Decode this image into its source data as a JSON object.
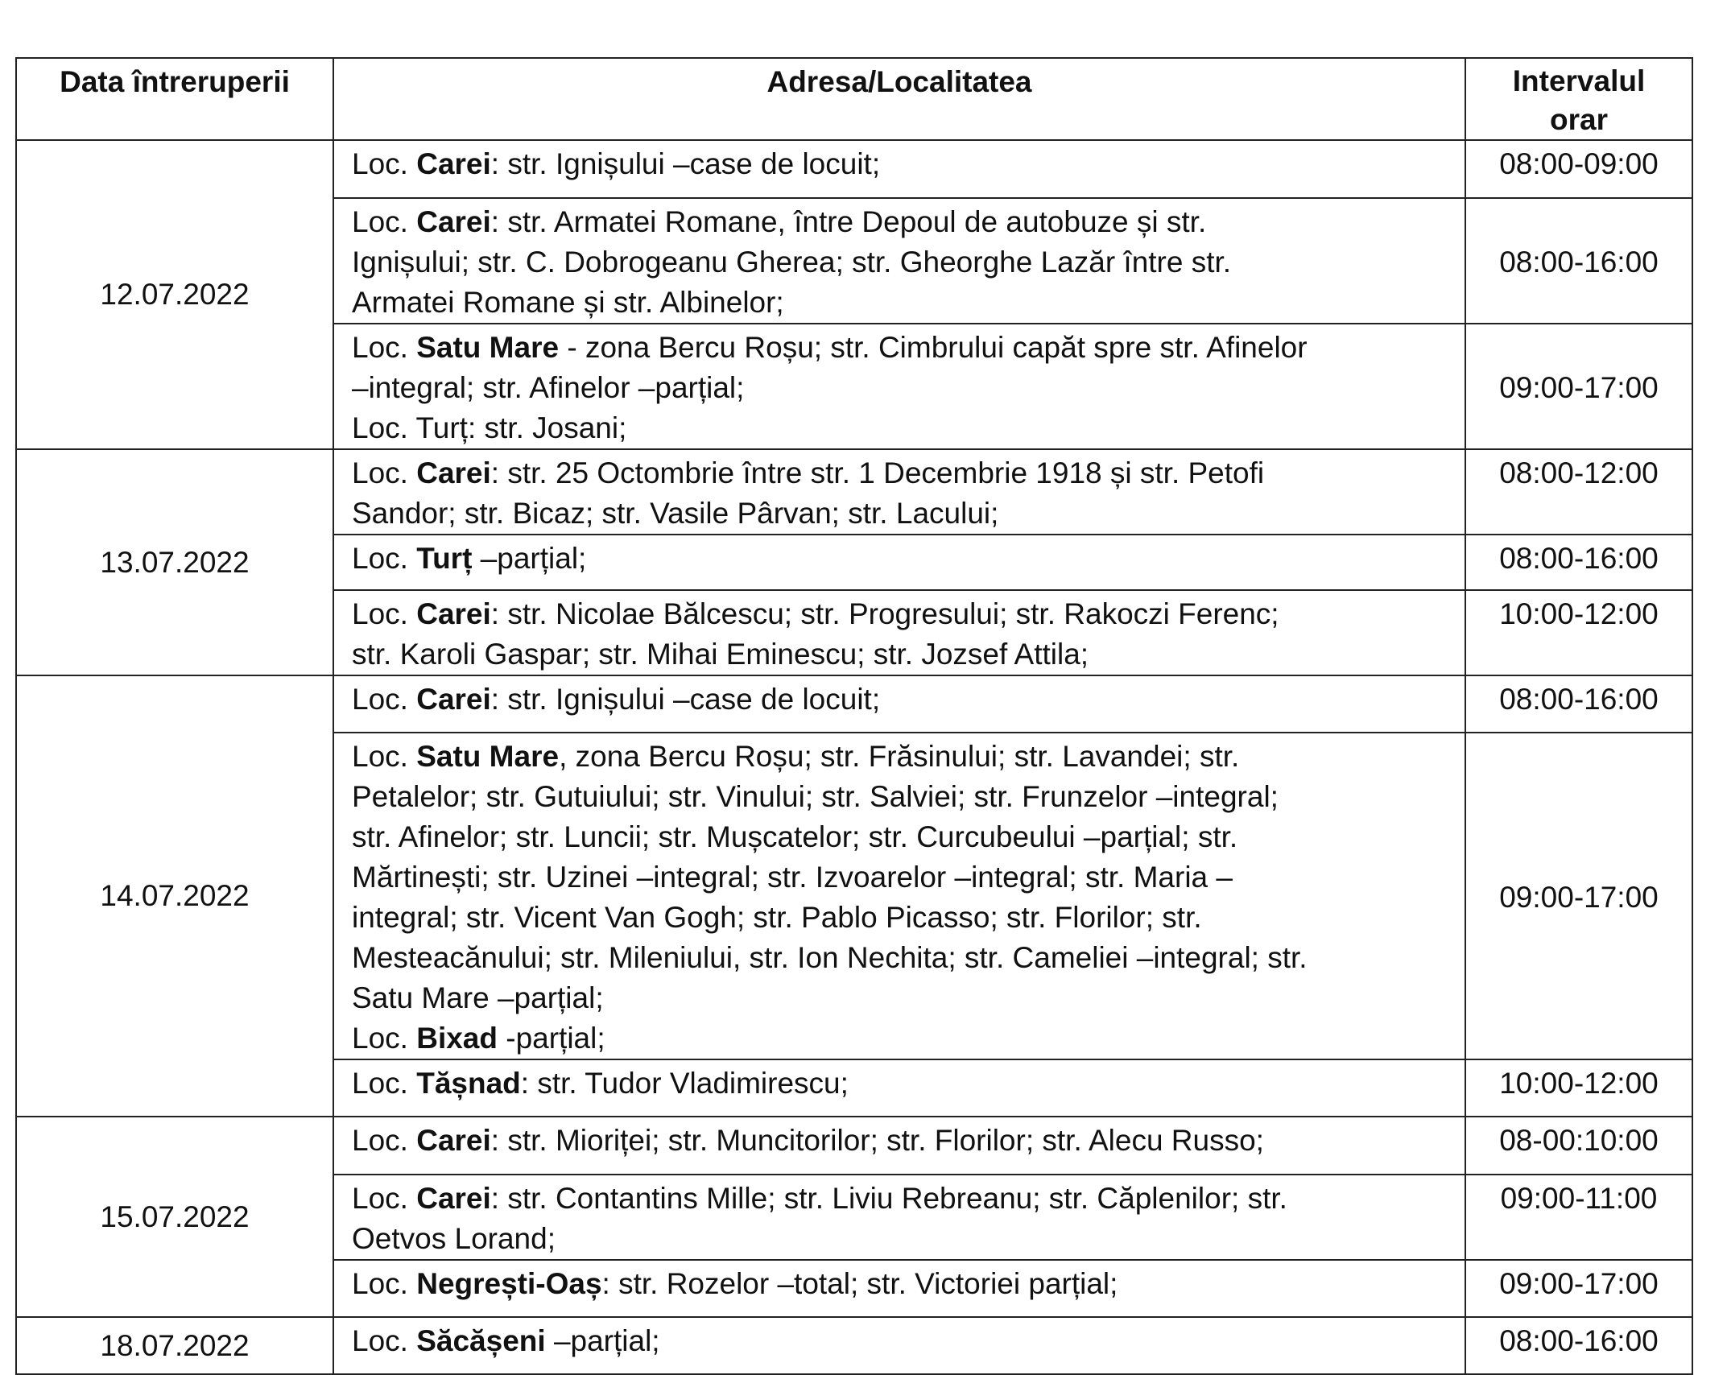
{
  "headers": [
    "Data întreruperii",
    "Adresa/Localitatea",
    "Intervalul orar"
  ],
  "groups": [
    {
      "date": "12.07.2022",
      "rows": [
        {
          "time": "08:00-09:00",
          "lines": [
            [
              {
                "t": "Loc. "
              },
              {
                "t": "Carei",
                "b": true
              },
              {
                "t": ": str. Ignișului –case de locuit;"
              }
            ]
          ]
        },
        {
          "time": "08:00-16:00",
          "lines": [
            [
              {
                "t": "Loc. "
              },
              {
                "t": "Carei",
                "b": true
              },
              {
                "t": ": str. Armatei Romane, între Depoul de autobuze și str."
              }
            ],
            [
              {
                "t": "Ignișului; str. C. Dobrogeanu Gherea; str. Gheorghe Lazăr între str."
              }
            ],
            [
              {
                "t": "Armatei Romane și str. Albinelor;"
              }
            ]
          ]
        },
        {
          "time": "09:00-17:00",
          "lines": [
            [
              {
                "t": "Loc. "
              },
              {
                "t": "Satu Mare",
                "b": true
              },
              {
                "t": " - zona Bercu Roșu; str. Cimbrului capăt spre str. Afinelor"
              }
            ],
            [
              {
                "t": "–integral; str. Afinelor –parțial;"
              }
            ],
            [
              {
                "t": "Loc. Turț: str. Josani;"
              }
            ]
          ]
        }
      ]
    },
    {
      "date": "13.07.2022",
      "rows": [
        {
          "time": "08:00-12:00",
          "lines": [
            [
              {
                "t": "Loc. "
              },
              {
                "t": "Carei",
                "b": true
              },
              {
                "t": ": str. 25 Octombrie între str. 1 Decembrie 1918 și str. Petofi"
              }
            ],
            [
              {
                "t": "Sandor; str. Bicaz; str. Vasile Pârvan; str. Lacului;"
              }
            ]
          ]
        },
        {
          "time": "08:00-16:00",
          "lines": [
            [
              {
                "t": "Loc. "
              },
              {
                "t": "Turț",
                "b": true
              },
              {
                "t": " –parțial;"
              }
            ]
          ]
        },
        {
          "time": "10:00-12:00",
          "lines": [
            [
              {
                "t": "Loc. "
              },
              {
                "t": "Carei",
                "b": true
              },
              {
                "t": ": str. Nicolae Bălcescu; str. Progresului; str. Rakoczi Ferenc;"
              }
            ],
            [
              {
                "t": "str. Karoli Gaspar; str. Mihai Eminescu; str. Jozsef Attila;"
              }
            ]
          ]
        }
      ]
    },
    {
      "date": "14.07.2022",
      "rows": [
        {
          "time": "08:00-16:00",
          "lines": [
            [
              {
                "t": "Loc. "
              },
              {
                "t": "Carei",
                "b": true
              },
              {
                "t": ": str. Ignișului –case de locuit;"
              }
            ]
          ]
        },
        {
          "time": "09:00-17:00",
          "lines": [
            [
              {
                "t": "Loc. "
              },
              {
                "t": "Satu Mare",
                "b": true
              },
              {
                "t": ", zona Bercu Roșu; str. Frăsinului; str. Lavandei; str."
              }
            ],
            [
              {
                "t": "Petalelor; str. Gutuiului; str. Vinului; str. Salviei; str. Frunzelor –integral;"
              }
            ],
            [
              {
                "t": "str. Afinelor; str. Luncii; str. Mușcatelor; str. Curcubeului –parțial; str."
              }
            ],
            [
              {
                "t": "Mărtinești; str. Uzinei –integral; str. Izvoarelor –integral; str. Maria –"
              }
            ],
            [
              {
                "t": "integral; str. Vicent Van Gogh; str. Pablo Picasso; str. Florilor; str."
              }
            ],
            [
              {
                "t": "Mesteacănului; str. Mileniului, str. Ion Nechita; str. Cameliei –integral; str."
              }
            ],
            [
              {
                "t": "Satu Mare –parțial;"
              }
            ],
            [
              {
                "t": "Loc. "
              },
              {
                "t": "Bixad",
                "b": true
              },
              {
                "t": " -parțial;"
              }
            ]
          ]
        },
        {
          "time": "10:00-12:00",
          "lines": [
            [
              {
                "t": "Loc. "
              },
              {
                "t": "Tășnad",
                "b": true
              },
              {
                "t": ": str. Tudor Vladimirescu;"
              }
            ]
          ]
        }
      ]
    },
    {
      "date": "15.07.2022",
      "rows": [
        {
          "time": "08-00:10:00",
          "lines": [
            [
              {
                "t": "Loc. "
              },
              {
                "t": "Carei",
                "b": true
              },
              {
                "t": ": str. Mioriței; str. Muncitorilor; str. Florilor; str. Alecu Russo;"
              }
            ]
          ]
        },
        {
          "time": "09:00-11:00",
          "lines": [
            [
              {
                "t": "Loc. "
              },
              {
                "t": "Carei",
                "b": true
              },
              {
                "t": ": str. Contantins Mille; str. Liviu Rebreanu; str. Căplenilor; str."
              }
            ],
            [
              {
                "t": "Oetvos Lorand;"
              }
            ]
          ]
        },
        {
          "time": "09:00-17:00",
          "lines": [
            [
              {
                "t": "Loc. "
              },
              {
                "t": "Negrești-Oaș",
                "b": true
              },
              {
                "t": ": str. Rozelor –total; str. Victoriei parțial;"
              }
            ]
          ]
        }
      ]
    },
    {
      "date": "18.07.2022",
      "rows": [
        {
          "time": "08:00-16:00",
          "lines": [
            [
              {
                "t": "Loc. "
              },
              {
                "t": "Săcășeni",
                "b": true
              },
              {
                "t": " –parțial;"
              }
            ]
          ]
        }
      ]
    }
  ]
}
